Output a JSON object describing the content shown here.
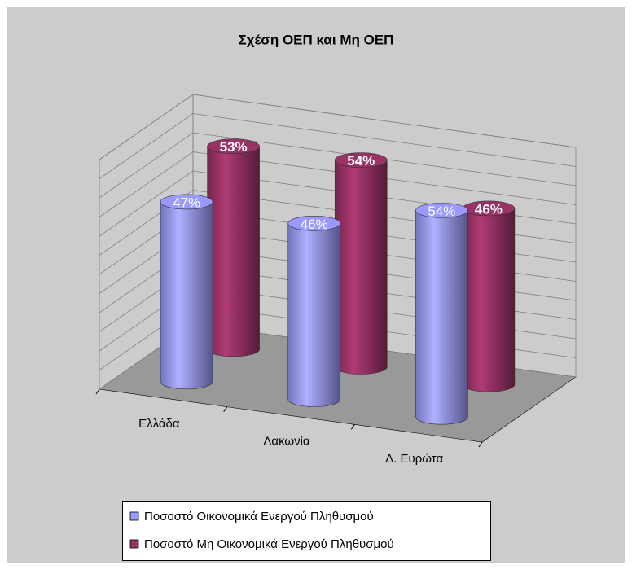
{
  "chart_data": {
    "type": "bar3d",
    "title": "Σχέση ΟΕΠ και Μη ΟΕΠ",
    "categories": [
      "Ελλάδα",
      "Λακωνία",
      "Δ. Ευρώτα"
    ],
    "series": [
      {
        "name": "Ποσοστό Οικονομικά Ενεργού Πληθυσμού",
        "color": "#9999ff",
        "values": [
          47,
          46,
          54
        ],
        "value_labels": [
          "47%",
          "46%",
          "54%"
        ]
      },
      {
        "name": "Ποσοστό Μη Οικονομικά Ενεργού Πληθυσμού",
        "color": "#993366",
        "values": [
          53,
          54,
          46
        ],
        "value_labels": [
          "53%",
          "54%",
          "46%"
        ]
      }
    ],
    "ylim": [
      0,
      60
    ],
    "yticks": [
      0,
      5,
      10,
      15,
      20,
      25,
      30,
      35,
      40,
      45,
      50,
      55,
      60
    ],
    "grid": true,
    "legend": "bottom"
  }
}
